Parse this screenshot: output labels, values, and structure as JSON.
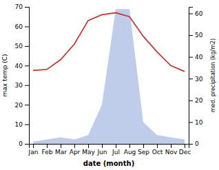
{
  "chart_data": {
    "type": "line",
    "categories": [
      "Jan",
      "Feb",
      "Mar",
      "Apr",
      "May",
      "Jun",
      "Jul",
      "Aug",
      "Sep",
      "Oct",
      "Nov",
      "Dec"
    ],
    "xlabel": "date (month)",
    "ylabel": "max temp (C)",
    "y2label": "med. precipitation (kg/m2)",
    "ylim": [
      0,
      70
    ],
    "yticks": [
      0,
      10,
      20,
      30,
      40,
      50,
      60,
      70
    ],
    "y2lim": [
      0,
      63
    ],
    "y2ticks": [
      0,
      10,
      20,
      30,
      40,
      50,
      60
    ],
    "series": [
      {
        "type": "line",
        "color": "#c0393b",
        "values": [
          37.5,
          38,
          43,
          51,
          63,
          66,
          67,
          65,
          55,
          47,
          40,
          37
        ]
      },
      {
        "type": "area",
        "axis": "y2",
        "color": "#b8c8e8",
        "values": [
          1,
          2,
          3,
          2,
          4,
          18,
          62,
          62,
          10,
          4,
          3,
          2
        ]
      }
    ]
  }
}
